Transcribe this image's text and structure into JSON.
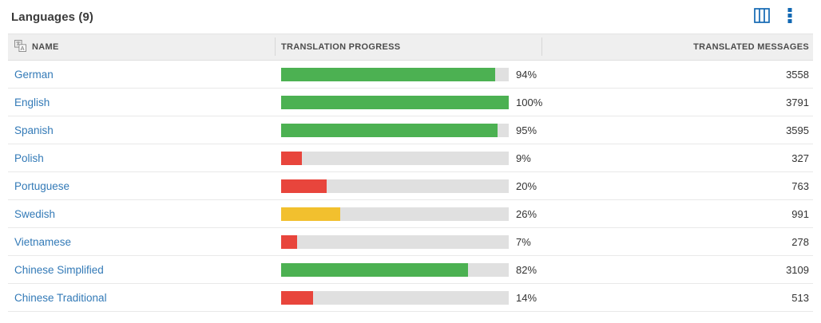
{
  "header": {
    "title": "Languages (9)",
    "icons": {
      "columns": "columns-icon",
      "menu": "kebab-menu-icon"
    }
  },
  "table": {
    "columns": [
      {
        "label": "NAME",
        "icon": "translate-icon",
        "align": "left"
      },
      {
        "label": "TRANSLATION PROGRESS",
        "align": "left"
      },
      {
        "label": "TRANSLATED MESSAGES",
        "align": "right"
      }
    ],
    "rows": [
      {
        "name": "German",
        "percent": 94,
        "status": "good",
        "messages": 3558
      },
      {
        "name": "English",
        "percent": 100,
        "status": "good",
        "messages": 3791
      },
      {
        "name": "Spanish",
        "percent": 95,
        "status": "good",
        "messages": 3595
      },
      {
        "name": "Polish",
        "percent": 9,
        "status": "bad",
        "messages": 327
      },
      {
        "name": "Portuguese",
        "percent": 20,
        "status": "bad",
        "messages": 763
      },
      {
        "name": "Swedish",
        "percent": 26,
        "status": "warn",
        "messages": 991
      },
      {
        "name": "Vietnamese",
        "percent": 7,
        "status": "bad",
        "messages": 278
      },
      {
        "name": "Chinese Simplified",
        "percent": 82,
        "status": "good",
        "messages": 3109
      },
      {
        "name": "Chinese Traditional",
        "percent": 14,
        "status": "bad",
        "messages": 513
      }
    ]
  },
  "theme": {
    "accent_blue": "#1268b3",
    "link_blue": "#337ab7",
    "progress_good": "#4cb152",
    "progress_warn": "#f2c02e",
    "progress_bad": "#e8453c",
    "progress_track": "#e0e0e0",
    "header_bg": "#efefef"
  }
}
